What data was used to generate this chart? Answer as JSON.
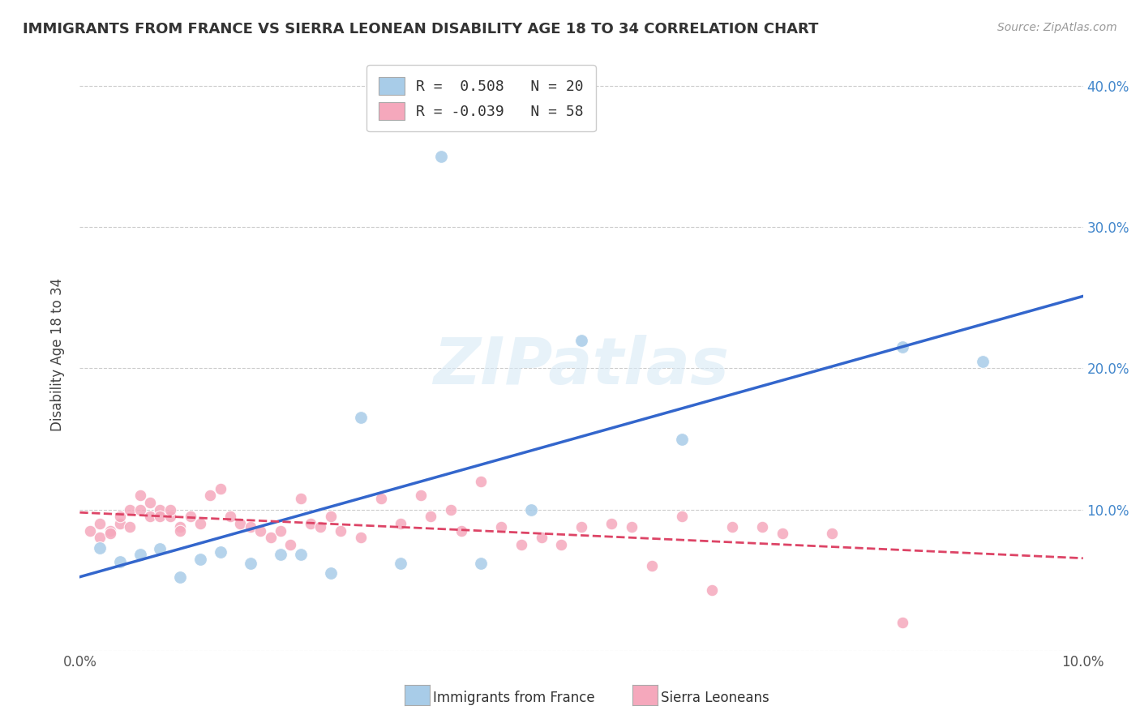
{
  "title": "IMMIGRANTS FROM FRANCE VS SIERRA LEONEAN DISABILITY AGE 18 TO 34 CORRELATION CHART",
  "source": "Source: ZipAtlas.com",
  "ylabel": "Disability Age 18 to 34",
  "xlim": [
    0.0,
    0.1
  ],
  "ylim": [
    0.0,
    0.42
  ],
  "legend_blue_label": "R =  0.508   N = 20",
  "legend_pink_label": "R = -0.039   N = 58",
  "blue_color": "#a8cce8",
  "pink_color": "#f5a8bc",
  "blue_line_color": "#3366cc",
  "pink_line_color": "#dd4466",
  "watermark": "ZIPatlas",
  "blue_x": [
    0.002,
    0.004,
    0.006,
    0.008,
    0.01,
    0.012,
    0.014,
    0.017,
    0.02,
    0.022,
    0.025,
    0.028,
    0.032,
    0.036,
    0.04,
    0.045,
    0.05,
    0.06,
    0.082,
    0.09
  ],
  "blue_y": [
    0.073,
    0.063,
    0.068,
    0.072,
    0.052,
    0.065,
    0.07,
    0.062,
    0.068,
    0.068,
    0.055,
    0.165,
    0.062,
    0.35,
    0.062,
    0.1,
    0.22,
    0.15,
    0.215,
    0.205
  ],
  "pink_x": [
    0.001,
    0.002,
    0.002,
    0.003,
    0.003,
    0.004,
    0.004,
    0.005,
    0.005,
    0.006,
    0.006,
    0.007,
    0.007,
    0.008,
    0.008,
    0.009,
    0.009,
    0.01,
    0.01,
    0.011,
    0.012,
    0.013,
    0.014,
    0.015,
    0.016,
    0.017,
    0.018,
    0.019,
    0.02,
    0.021,
    0.022,
    0.023,
    0.024,
    0.025,
    0.026,
    0.028,
    0.03,
    0.032,
    0.034,
    0.035,
    0.037,
    0.038,
    0.04,
    0.042,
    0.044,
    0.046,
    0.048,
    0.05,
    0.053,
    0.055,
    0.057,
    0.06,
    0.063,
    0.065,
    0.068,
    0.07,
    0.075,
    0.082
  ],
  "pink_y": [
    0.085,
    0.09,
    0.08,
    0.085,
    0.083,
    0.09,
    0.095,
    0.1,
    0.088,
    0.11,
    0.1,
    0.095,
    0.105,
    0.1,
    0.095,
    0.095,
    0.1,
    0.088,
    0.085,
    0.095,
    0.09,
    0.11,
    0.115,
    0.095,
    0.09,
    0.088,
    0.085,
    0.08,
    0.085,
    0.075,
    0.108,
    0.09,
    0.088,
    0.095,
    0.085,
    0.08,
    0.108,
    0.09,
    0.11,
    0.095,
    0.1,
    0.085,
    0.12,
    0.088,
    0.075,
    0.08,
    0.075,
    0.088,
    0.09,
    0.088,
    0.06,
    0.095,
    0.043,
    0.088,
    0.088,
    0.083,
    0.083,
    0.02
  ]
}
